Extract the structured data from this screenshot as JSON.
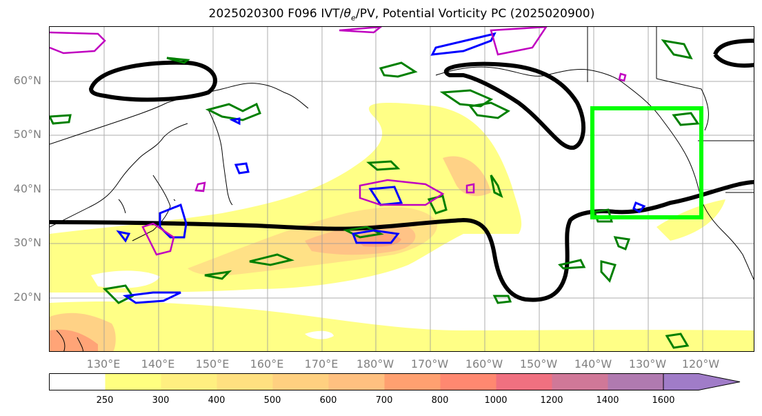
{
  "title_parts": {
    "prefix": "2025020300 F096 IVT/",
    "theta": "θ",
    "sub": "e",
    "suffix": "/PV, Potential Vorticity PC (2025020900)"
  },
  "lat_labels": [
    "60°N",
    "50°N",
    "40°N",
    "30°N",
    "20°N"
  ],
  "lon_labels": [
    "130°E",
    "140°E",
    "150°E",
    "160°E",
    "170°E",
    "180°W",
    "170°W",
    "160°W",
    "150°W",
    "140°W",
    "130°W",
    "120°W"
  ],
  "colorbar": {
    "ticks": [
      "250",
      "300",
      "400",
      "500",
      "600",
      "700",
      "800",
      "1000",
      "1200",
      "1400",
      "1600"
    ],
    "colors": [
      "#ffffff",
      "#ffff80",
      "#ffef80",
      "#ffe080",
      "#ffd080",
      "#ffc080",
      "#ffa070",
      "#ff8870",
      "#f07080",
      "#d07898",
      "#b07ab0",
      "#a07cc8"
    ]
  },
  "map": {
    "projection": "Equidistant cylindrical",
    "lon_range": [
      "120°E",
      "115°W"
    ],
    "lat_range": [
      "10°N",
      "70°N"
    ],
    "gridlines": true,
    "highlight_box": {
      "color": "#00ff00",
      "lon": [
        "140°W",
        "120°W"
      ],
      "lat": [
        "35°N",
        "55°N"
      ]
    },
    "contour_colors": {
      "pv_contour": "#000000",
      "theta_e": "#008000",
      "pv_blue": "#0000ff",
      "pv_magenta": "#c000c0"
    }
  }
}
